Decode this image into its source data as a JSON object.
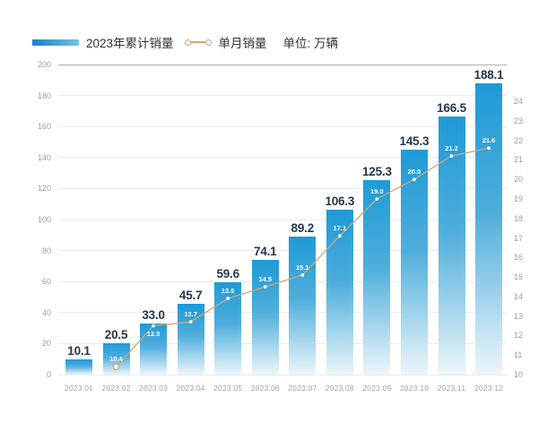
{
  "legend": {
    "bar_label": "2023年累计销量",
    "line_label": "单月销量",
    "unit_label": "单位: 万辆"
  },
  "colors": {
    "legend_swatch_left": "#1A80C2",
    "legend_swatch_right": "#74C2E8",
    "legend_text": "#333333",
    "bar_gradient_top": "#1E9AD6",
    "bar_gradient_mid": "#4FAEDC",
    "bar_gradient_bottom": "#EDF6FA",
    "line": "#D6A470",
    "marker_fill": "#FFFFFF",
    "bar_value_label": "#26384A",
    "line_value_label": "#FFFFFF",
    "axis_tick_label": "#9B9FA4",
    "x_axis_label": "#9EA3A8",
    "gridline": "#E9ECEE",
    "gridline_top": "#ADADAD"
  },
  "chart_data": {
    "type": "bar+line combo",
    "title": "",
    "unit": "万辆",
    "grid": true,
    "legend_position": "top-left",
    "categories": [
      "2023.01",
      "2023.02",
      "2023.03",
      "2023.04",
      "2023.05",
      "2023.06",
      "2023.07",
      "2023.08",
      "2023.09",
      "2023.10",
      "2023.11",
      "2023.12"
    ],
    "series": [
      {
        "name": "2023年累计销量",
        "type": "bar",
        "axis": "left",
        "values": [
          10.1,
          20.5,
          33.0,
          45.7,
          59.6,
          74.1,
          89.2,
          106.3,
          125.3,
          145.3,
          166.5,
          188.1
        ],
        "labels": [
          "10.1",
          "20.5",
          "33.0",
          "45.7",
          "59.6",
          "74.1",
          "89.2",
          "106.3",
          "125.3",
          "145.3",
          "166.5",
          "188.1"
        ]
      },
      {
        "name": "单月销量",
        "type": "line",
        "axis": "right",
        "values": [
          null,
          10.4,
          12.5,
          12.7,
          13.9,
          14.5,
          15.1,
          17.1,
          19.0,
          20.0,
          21.2,
          21.6
        ],
        "labels": [
          null,
          "10.4",
          "12.5",
          "12.7",
          "13.9",
          "14.5",
          "15.1",
          "17.1",
          "19.0",
          "20.0",
          "21.2",
          "21.6"
        ]
      }
    ],
    "left_axis": {
      "min": 0,
      "max": 200,
      "step": 20
    },
    "right_axis": {
      "min": 10,
      "max": 24,
      "step": 1
    }
  }
}
